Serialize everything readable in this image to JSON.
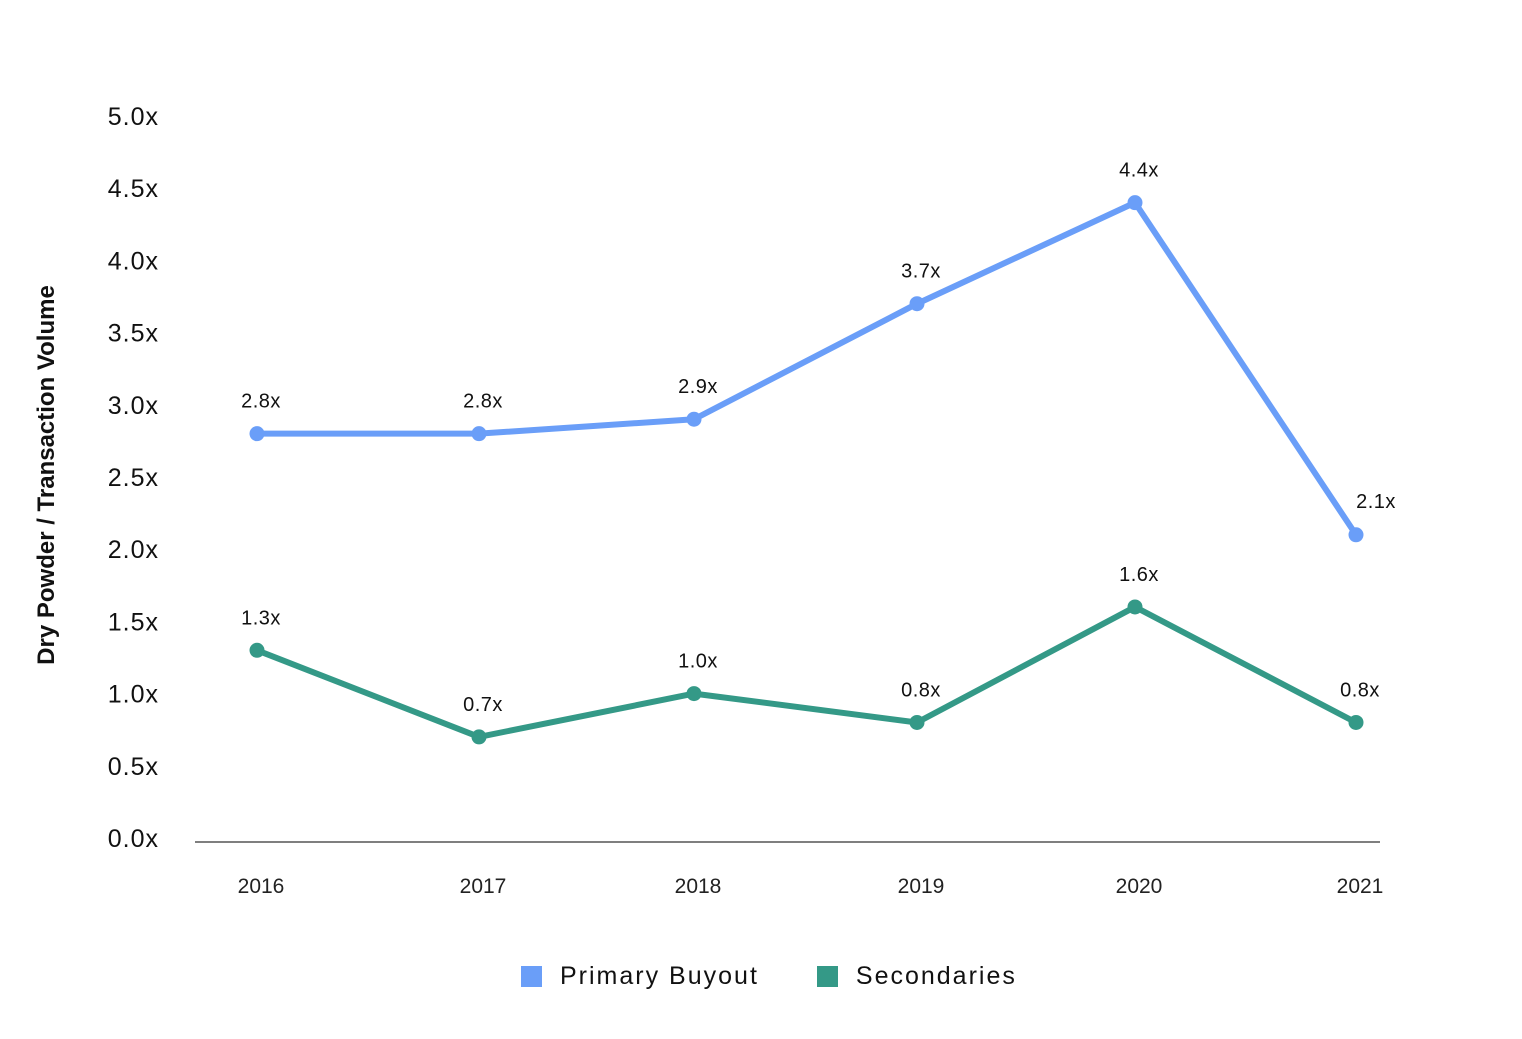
{
  "chart_data": {
    "type": "line",
    "title": "",
    "xlabel": "",
    "ylabel": "Dry Powder / Transaction Volume",
    "categories": [
      "2016",
      "2017",
      "2018",
      "2019",
      "2020",
      "2021"
    ],
    "ylim": [
      0,
      5
    ],
    "yticks": [
      "0.0x",
      "0.5x",
      "1.0x",
      "1.5x",
      "2.0x",
      "2.5x",
      "3.0x",
      "3.5x",
      "4.0x",
      "4.5x",
      "5.0x"
    ],
    "grid": false,
    "legend_position": "bottom",
    "series": [
      {
        "name": "Primary Buyout",
        "color": "#6a9ef8",
        "values": [
          2.8,
          2.8,
          2.9,
          3.7,
          4.4,
          2.1
        ],
        "labels": [
          "2.8x",
          "2.8x",
          "2.9x",
          "3.7x",
          "4.4x",
          "2.1x"
        ]
      },
      {
        "name": "Secondaries",
        "color": "#349987",
        "values": [
          1.3,
          0.7,
          1.0,
          0.8,
          1.6,
          0.8
        ],
        "labels": [
          "1.3x",
          "0.7x",
          "1.0x",
          "0.8x",
          "1.6x",
          "0.8x"
        ]
      }
    ]
  }
}
